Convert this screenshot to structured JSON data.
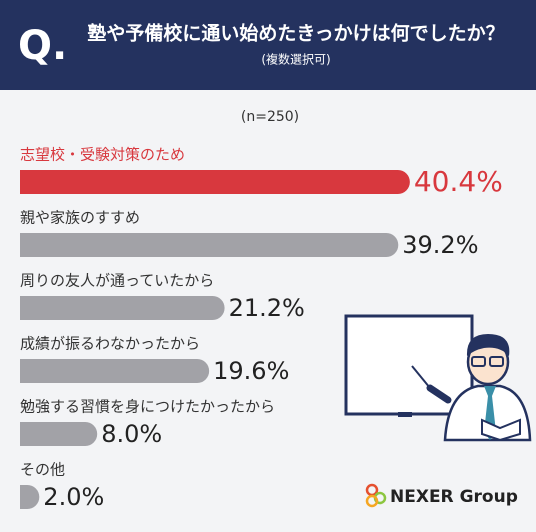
{
  "chart_data": {
    "type": "bar",
    "orientation": "horizontal",
    "question_mark": "Q.",
    "title": "塾や予備校に通い始めたきっかけは何でしたか？",
    "subtitle": "(複数選択可)",
    "note": "(n=250)",
    "categories": [
      "志望校・受験対策のため",
      "親や家族のすすめ",
      "周りの友人が通っていたから",
      "成績が振るわなかったから",
      "勉強する習慣を身につけたかったから",
      "その他"
    ],
    "values": [
      40.4,
      39.2,
      21.2,
      19.6,
      8.0,
      2.0
    ],
    "value_labels": [
      "40.4%",
      "39.2%",
      "21.2%",
      "19.6%",
      "8.0%",
      "2.0%"
    ],
    "colors": [
      "#d8383e",
      "#a2a2a7",
      "#a2a2a7",
      "#a2a2a7",
      "#a2a2a7",
      "#a2a2a7"
    ],
    "label_colors": [
      "#d8383e",
      "#333333",
      "#333333",
      "#333333",
      "#333333",
      "#333333"
    ]
  },
  "logo": "NEXER Group"
}
